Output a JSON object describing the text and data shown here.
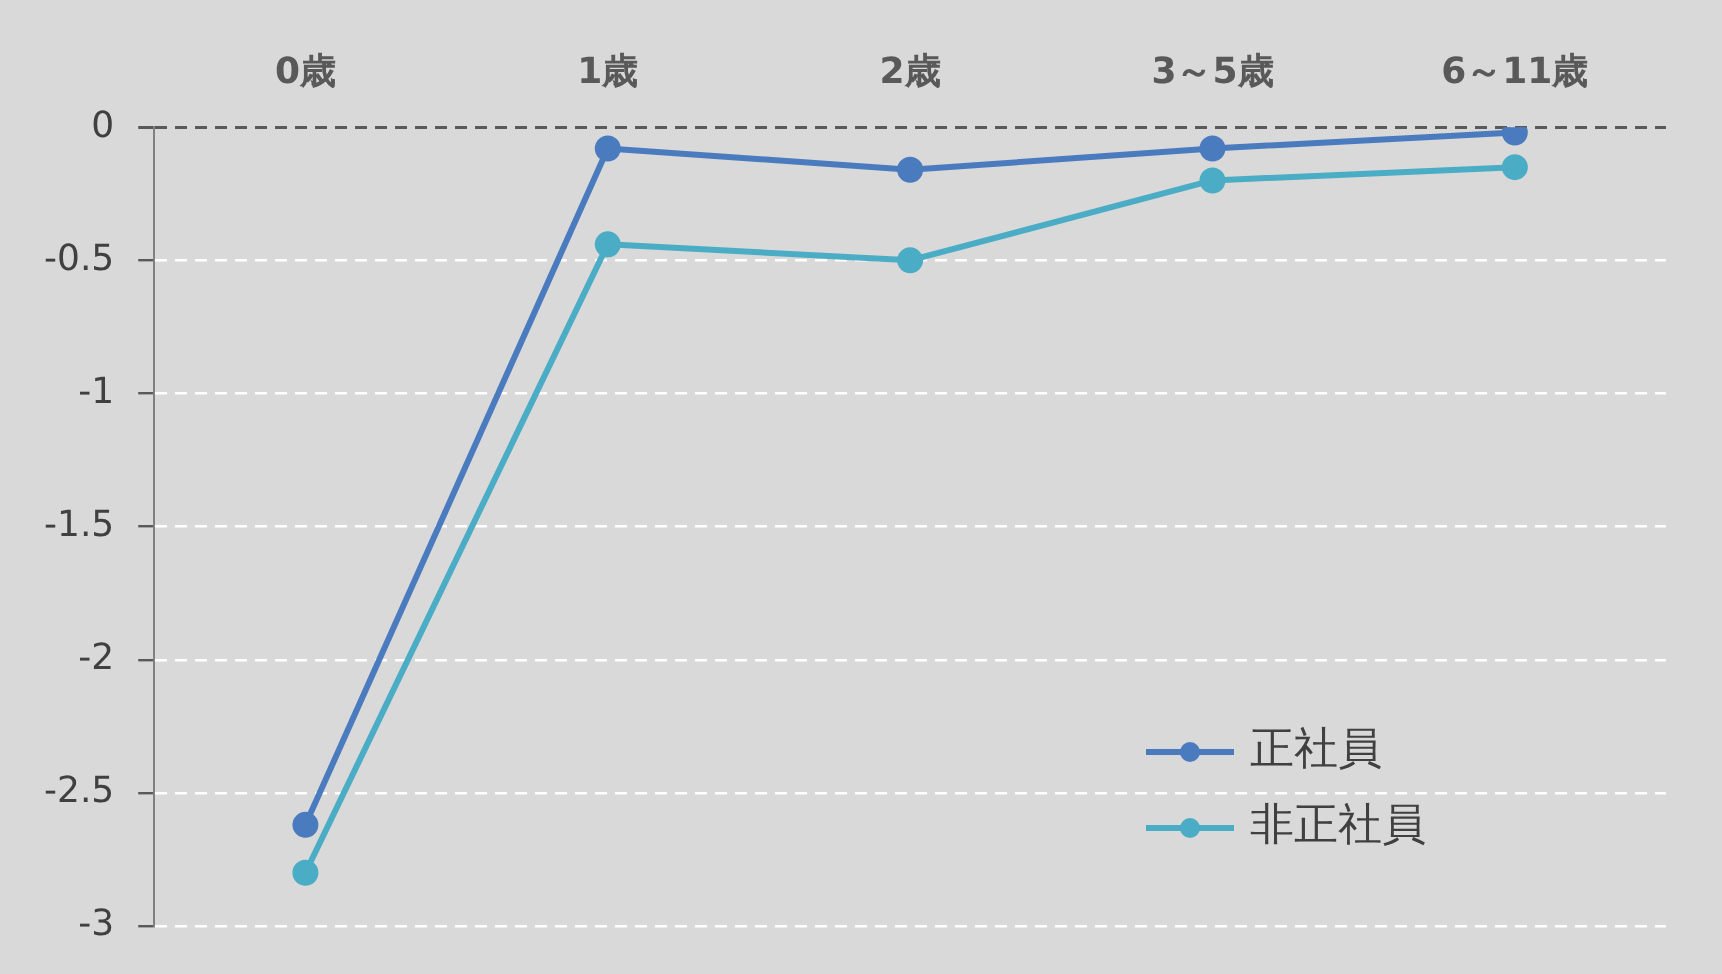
{
  "chart_data": {
    "type": "line",
    "categories": [
      "0歳",
      "1歳",
      "2歳",
      "3～5歳",
      "6～11歳"
    ],
    "series": [
      {
        "name": "正社員",
        "color": "#4a7bbf",
        "values": [
          -2.62,
          -0.08,
          -0.16,
          -0.08,
          -0.02
        ]
      },
      {
        "name": "非正社員",
        "color": "#4bacc6",
        "values": [
          -2.8,
          -0.44,
          -0.5,
          -0.2,
          -0.15
        ]
      }
    ],
    "ylim": [
      -3,
      0
    ],
    "yticks": [
      -3,
      -2.5,
      -2,
      -1.5,
      -1,
      -0.5,
      0
    ],
    "grid": "y",
    "legend": "bottom right",
    "marker": "circle",
    "line_style": "solid"
  }
}
